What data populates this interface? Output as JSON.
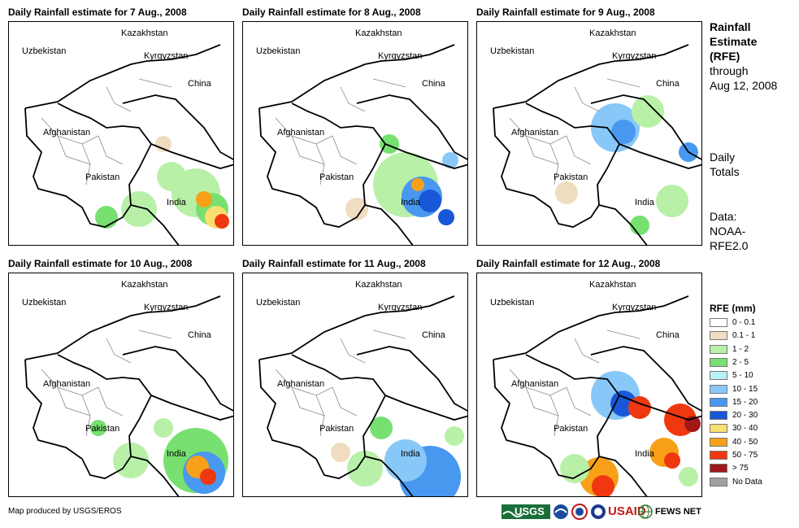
{
  "panels": [
    {
      "title": "Daily Rainfall estimate for 7 Aug., 2008"
    },
    {
      "title": "Daily Rainfall estimate for 8 Aug., 2008"
    },
    {
      "title": "Daily Rainfall estimate for 9 Aug., 2008"
    },
    {
      "title": "Daily Rainfall estimate for 10 Aug., 2008"
    },
    {
      "title": "Daily Rainfall estimate for 11 Aug., 2008"
    },
    {
      "title": "Daily Rainfall estimate for 12 Aug., 2008"
    }
  ],
  "map_labels": {
    "kazakhstan": "Kazakhstan",
    "uzbekistan": "Uzbekistan",
    "kyrgyzstan": "Kyrgyzstan",
    "china": "China",
    "afghanistan": "Afghanistan",
    "pakistan": "Pakistan",
    "india": "India"
  },
  "side": {
    "title_line1": "Rainfall",
    "title_line2": "Estimate",
    "title_line3": "(RFE)",
    "through": "through",
    "date": "Aug 12, 2008",
    "daily1": "Daily",
    "daily2": "Totals",
    "data1": "Data:",
    "data2": "NOAA-",
    "data3": "RFE2.0"
  },
  "legend": {
    "title": "RFE (mm)",
    "items": [
      {
        "label": "0 - 0.1",
        "color": "#ffffff"
      },
      {
        "label": "0.1 - 1",
        "color": "#f0dcc0"
      },
      {
        "label": "1 - 2",
        "color": "#b8f0a8"
      },
      {
        "label": "2 - 5",
        "color": "#78e070"
      },
      {
        "label": "5 - 10",
        "color": "#b8f0f8"
      },
      {
        "label": "10 - 15",
        "color": "#88c8f8"
      },
      {
        "label": "15 - 20",
        "color": "#4898f0"
      },
      {
        "label": "20 - 30",
        "color": "#1858d8"
      },
      {
        "label": "30 - 40",
        "color": "#f8e070"
      },
      {
        "label": "40 - 50",
        "color": "#f8a018"
      },
      {
        "label": "50 - 75",
        "color": "#f03810"
      },
      {
        "label": "> 75",
        "color": "#a01818"
      },
      {
        "label": "No Data",
        "color": "#a0a0a0"
      }
    ]
  },
  "footer": "Map produced by USGS/EROS",
  "logos": {
    "usgs": "USGS",
    "usaid": "USAID",
    "fewsnet": "FEWS NET"
  }
}
